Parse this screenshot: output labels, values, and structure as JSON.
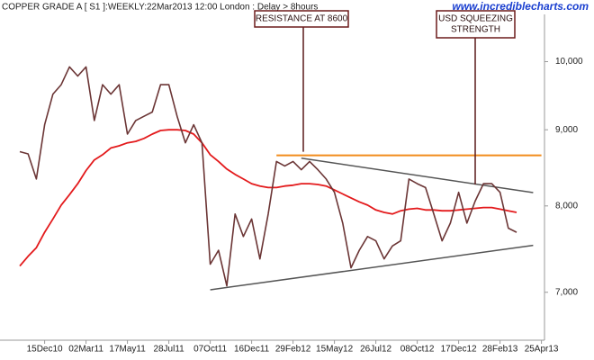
{
  "chart_data": {
    "type": "line",
    "title": "COPPER GRADE A [ S1 ]:WEEKLY:22Mar2013 12:00 London : Delay > 8hours",
    "watermark": "www.incrediblecharts.com",
    "categories": [
      null,
      null,
      null,
      "15Dec10",
      null,
      null,
      null,
      null,
      "02Mar11",
      null,
      null,
      null,
      null,
      "17May11",
      null,
      null,
      null,
      null,
      "28Jul11",
      null,
      null,
      null,
      null,
      "07Oct11",
      null,
      null,
      null,
      null,
      "16Dec11",
      null,
      null,
      null,
      null,
      "29Feb12",
      null,
      null,
      null,
      null,
      "15May12",
      null,
      null,
      null,
      null,
      "26Jul12",
      null,
      null,
      null,
      null,
      "08Oct12",
      null,
      null,
      null,
      null,
      "17Dec12",
      null,
      null,
      null,
      null,
      "28Feb13",
      null,
      null,
      null,
      null,
      "25Apr13"
    ],
    "series": [
      {
        "color": "#6b3535",
        "values": [
          8700,
          8670,
          8340,
          9070,
          9510,
          9650,
          9920,
          9780,
          9920,
          9130,
          9650,
          9510,
          9650,
          8940,
          9130,
          9190,
          9250,
          9650,
          9650,
          9190,
          8820,
          9070,
          8820,
          7310,
          7470,
          7070,
          7900,
          7630,
          7840,
          7370,
          7900,
          8570,
          8510,
          8570,
          8460,
          8570,
          8460,
          8340,
          8170,
          7790,
          7270,
          7470,
          7630,
          7580,
          7370,
          7520,
          7580,
          8340,
          8280,
          8230,
          7900,
          7580,
          7790,
          8170,
          7790,
          8060,
          8280,
          8280,
          8170,
          7730,
          7680,
          null,
          null,
          null
        ]
      },
      {
        "color": "#e31a1c",
        "values": [
          7290,
          7400,
          7500,
          7680,
          7840,
          8010,
          8140,
          8280,
          8450,
          8590,
          8660,
          8750,
          8780,
          8820,
          8840,
          8880,
          8940,
          8990,
          9000,
          9000,
          8990,
          8940,
          8820,
          8660,
          8570,
          8470,
          8400,
          8340,
          8280,
          8250,
          8230,
          8230,
          8250,
          8260,
          8280,
          8280,
          8270,
          8250,
          8200,
          8150,
          8100,
          8050,
          8010,
          7950,
          7920,
          7900,
          7940,
          7960,
          7970,
          7950,
          7950,
          7940,
          7940,
          7950,
          7960,
          7970,
          7980,
          7980,
          7960,
          7940,
          7920,
          null,
          null,
          null
        ]
      }
    ],
    "lines": [
      {
        "color": "#f28c1c",
        "from": 31,
        "to": 63,
        "values": [
          8650,
          8650
        ]
      },
      {
        "color": "#555555",
        "from": 34,
        "to": 62,
        "values": [
          8613,
          8167
        ]
      },
      {
        "color": "#555555",
        "from": 23,
        "to": 62,
        "values": [
          7027,
          7527
        ]
      }
    ],
    "annotations": [
      {
        "text": [
          "RESISTANCE AT 8600"
        ]
      },
      {
        "text": [
          "USD SQUEEZING",
          "STRENGTH"
        ]
      }
    ],
    "ylim": [
      6500,
      11000
    ],
    "yticks": [
      {
        "value": 7000,
        "label": "7,000"
      },
      {
        "value": 8000,
        "label": "8,000"
      },
      {
        "value": 9000,
        "label": "9,000"
      },
      {
        "value": 10000,
        "label": "10,000"
      }
    ],
    "log_scale": true,
    "grid": false
  }
}
